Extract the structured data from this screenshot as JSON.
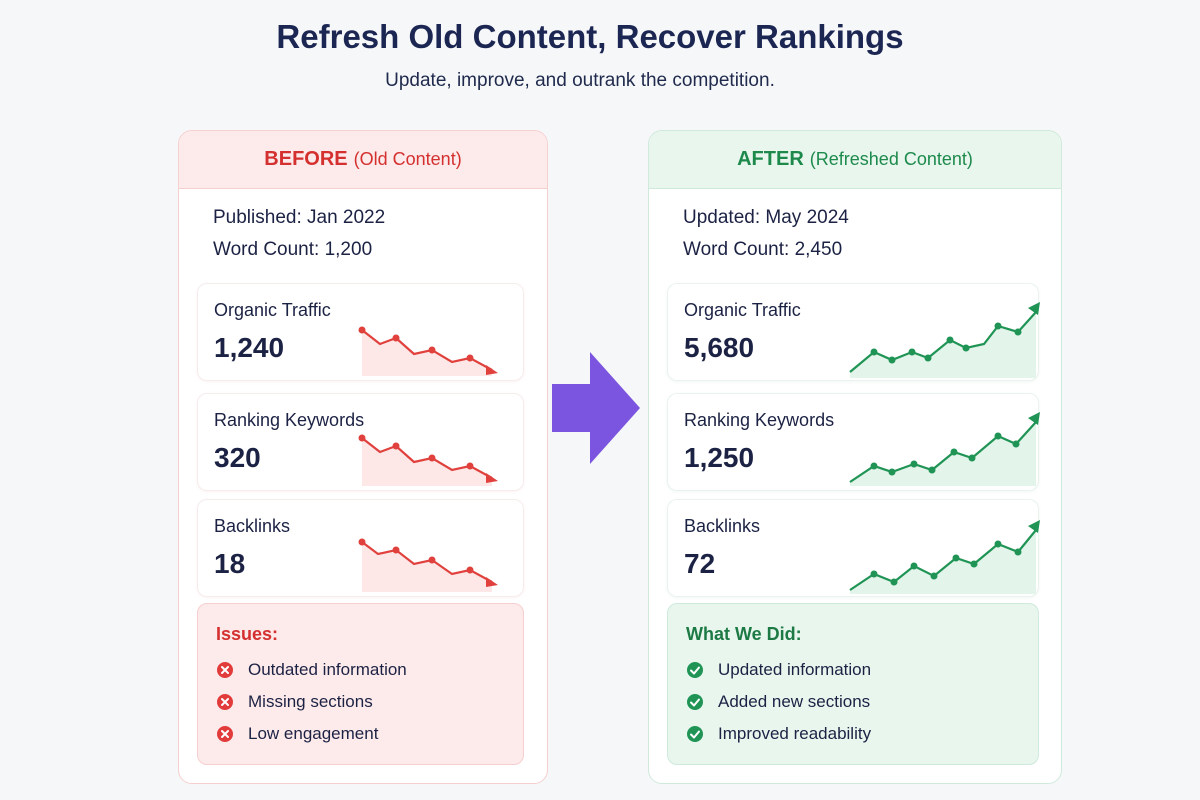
{
  "header": {
    "title": "Refresh Old Content, Recover Rankings",
    "subtitle": "Update, improve, and outrank the competition."
  },
  "before": {
    "heading_strong": "BEFORE",
    "heading_sub": "(Old Content)",
    "published": "Published: Jan 2022",
    "word_count": "Word Count: 1,200",
    "metrics": [
      {
        "label": "Organic Traffic",
        "value": "1,240",
        "trend": "down"
      },
      {
        "label": "Ranking Keywords",
        "value": "320",
        "trend": "down"
      },
      {
        "label": "Backlinks",
        "value": "18",
        "trend": "down"
      }
    ],
    "issues_title": "Issues:",
    "issues": [
      "Outdated information",
      "Missing sections",
      "Low engagement"
    ]
  },
  "after": {
    "heading_strong": "AFTER",
    "heading_sub": "(Refreshed Content)",
    "updated": "Updated: May 2024",
    "word_count": "Word Count: 2,450",
    "metrics": [
      {
        "label": "Organic Traffic",
        "value": "5,680",
        "trend": "up"
      },
      {
        "label": "Ranking Keywords",
        "value": "1,250",
        "trend": "up"
      },
      {
        "label": "Backlinks",
        "value": "72",
        "trend": "up"
      }
    ],
    "did_title": "What We Did:",
    "actions": [
      "Updated information",
      "Added new sections",
      "Improved readability"
    ]
  },
  "colors": {
    "before_accent": "#d3302f",
    "after_accent": "#1d8a4c",
    "arrow": "#7b55e0",
    "title": "#1c2652"
  },
  "icons": {
    "issue": "x-circle-icon",
    "action": "check-circle-icon",
    "transition": "arrow-right-icon"
  }
}
